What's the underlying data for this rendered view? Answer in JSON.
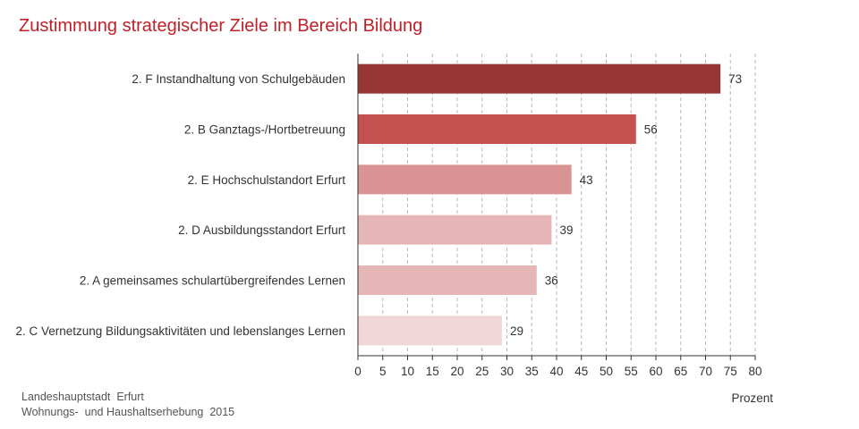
{
  "colors": {
    "title": "#c0202a",
    "bars": [
      "#973535",
      "#c45050",
      "#d99393",
      "#e6b6b6",
      "#e6b6b6",
      "#f1d6d8"
    ]
  },
  "source": {
    "line1": "Landeshauptstadt  Erfurt",
    "line2": "Wohnungs-  und Haushaltserhebung  2015"
  },
  "chart_data": {
    "type": "bar",
    "orientation": "horizontal",
    "title": "Zustimmung strategischer Ziele im Bereich Bildung",
    "xlabel": "Prozent",
    "ylabel": "",
    "xlim": [
      0,
      80
    ],
    "ticks": [
      0,
      5,
      10,
      15,
      20,
      25,
      30,
      35,
      40,
      45,
      50,
      55,
      60,
      65,
      70,
      75,
      80
    ],
    "grid": "vertical dashed",
    "categories": [
      "2. F Instandhaltung von Schulgebäuden",
      "2. B Ganztags-/Hortbetreuung",
      "2. E Hochschulstandort Erfurt",
      "2. D Ausbildungsstandort Erfurt",
      "2. A gemeinsames schulartübergreifendes Lernen",
      "2. C Vernetzung Bildungsaktivitäten und lebenslanges Lernen"
    ],
    "values": [
      73,
      56,
      43,
      39,
      36,
      29
    ]
  }
}
